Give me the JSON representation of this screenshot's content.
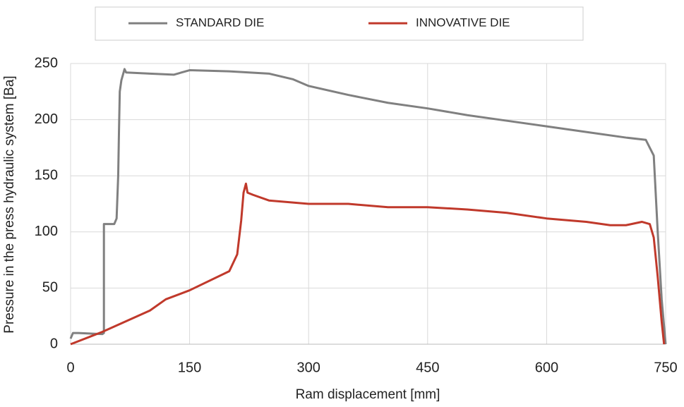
{
  "chart_data": {
    "type": "line",
    "x_label": "Ram displacement [mm]",
    "y_label": "Pressure in the press hydraulic system  [Ba]",
    "xlim": [
      0,
      750
    ],
    "ylim": [
      0,
      250
    ],
    "xticks": [
      0,
      150,
      300,
      450,
      600,
      750
    ],
    "yticks": [
      0,
      50,
      100,
      150,
      200,
      250
    ],
    "grid": true,
    "legend": "top",
    "series": [
      {
        "name": "STANDARD DIE",
        "color": "#808080",
        "x": [
          0,
          3,
          10,
          40,
          42,
          42,
          55,
          58,
          60,
          61,
          62,
          64,
          66,
          68,
          70,
          100,
          130,
          140,
          150,
          200,
          250,
          280,
          300,
          350,
          400,
          450,
          500,
          550,
          600,
          650,
          700,
          725,
          730,
          735,
          740,
          745,
          750
        ],
        "values": [
          5,
          10,
          10,
          9,
          10,
          107,
          107,
          112,
          150,
          190,
          225,
          235,
          240,
          245,
          242,
          241,
          240,
          242,
          244,
          243,
          241,
          236,
          230,
          222,
          215,
          210,
          204,
          199,
          194,
          189,
          184,
          182,
          175,
          168,
          100,
          40,
          0
        ]
      },
      {
        "name": "INNOVATIVE DIE",
        "color": "#c0392b",
        "x": [
          0,
          40,
          100,
          120,
          150,
          200,
          210,
          215,
          218,
          221,
          223,
          230,
          250,
          300,
          350,
          400,
          450,
          500,
          550,
          600,
          650,
          680,
          700,
          720,
          730,
          735,
          740,
          745,
          748
        ],
        "values": [
          0,
          11,
          30,
          40,
          48,
          65,
          80,
          110,
          135,
          143,
          135,
          133,
          128,
          125,
          125,
          122,
          122,
          120,
          117,
          112,
          109,
          106,
          106,
          109,
          107,
          95,
          60,
          20,
          0
        ]
      }
    ]
  }
}
